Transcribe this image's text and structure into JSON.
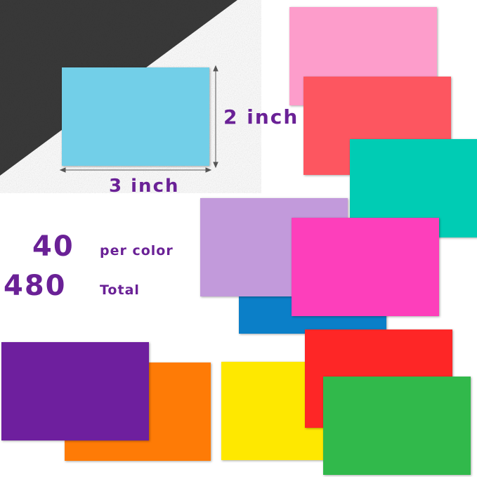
{
  "dimensions": {
    "height_label": "2 inch",
    "width_label": "3 inch"
  },
  "quantity": {
    "per_color_number": "40",
    "per_color_label": "per color",
    "total_number": "480",
    "total_label": "Total"
  },
  "colors": {
    "text": "#6a2196",
    "background_paper": "#333333",
    "sample_card": "#72cfe8",
    "cards": [
      "#fd9dcb",
      "#fd5660",
      "#00ccb4",
      "#c29adb",
      "#0b7fc8",
      "#fd3fbb",
      "#6e1f9e",
      "#fe7b06",
      "#fee800",
      "#fe2626",
      "#31b94b"
    ]
  }
}
